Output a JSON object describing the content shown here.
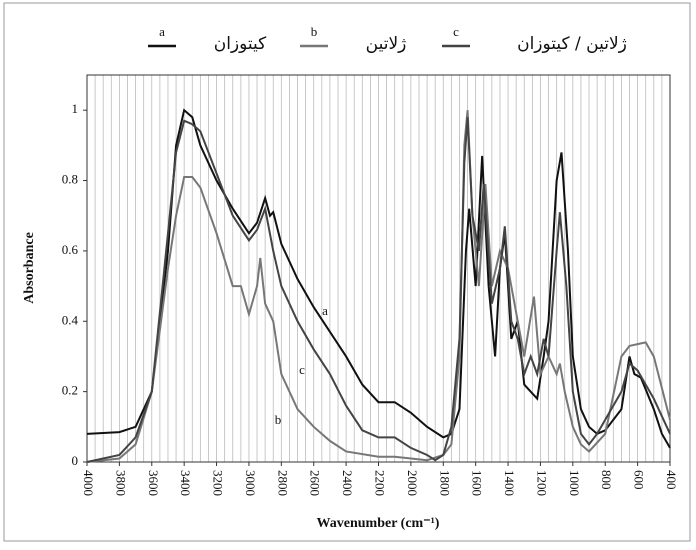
{
  "chart_data": {
    "type": "line",
    "xlabel": "Wavenumber (cm⁻¹)",
    "ylabel": "Absorbance",
    "xlim": [
      4000,
      400
    ],
    "ylim": [
      0,
      1.1
    ],
    "xticks": [
      4000,
      3800,
      3600,
      3400,
      3200,
      3000,
      2800,
      2600,
      2400,
      2200,
      2000,
      1800,
      1600,
      1400,
      1200,
      1000,
      800,
      600,
      400
    ],
    "xminor_ticks": [
      4000,
      3950,
      3900,
      3850,
      3800,
      3750,
      3700,
      3650,
      3600,
      3550,
      3500,
      3450,
      3400,
      3350,
      3300,
      3250,
      3200,
      3150,
      3100,
      3050,
      3000,
      2950,
      2900,
      2850,
      2800,
      2750,
      2700,
      2650,
      2600,
      2550,
      2500,
      2450,
      2400,
      2350,
      2300,
      2250,
      2200,
      2150,
      2100,
      2050,
      2000,
      1950,
      1900,
      1850,
      1800,
      1750,
      1700,
      1650,
      1600,
      1550,
      1500,
      1450,
      1400,
      1350,
      1300,
      1250,
      1200,
      1150,
      1100,
      1050,
      1000,
      950,
      900,
      850,
      800,
      750,
      700,
      650,
      600,
      550,
      500,
      450,
      400
    ],
    "yticks": [
      0,
      0.2,
      0.4,
      0.6,
      0.8,
      1
    ],
    "grid": "x",
    "series": [
      {
        "name": "کیتوزان",
        "label": "a",
        "color": "#111111",
        "x": [
          4000,
          3800,
          3700,
          3600,
          3500,
          3450,
          3400,
          3350,
          3300,
          3200,
          3100,
          3000,
          2950,
          2900,
          2870,
          2850,
          2800,
          2700,
          2600,
          2500,
          2400,
          2300,
          2200,
          2100,
          2000,
          1900,
          1800,
          1750,
          1700,
          1660,
          1640,
          1600,
          1560,
          1520,
          1480,
          1450,
          1420,
          1380,
          1340,
          1300,
          1260,
          1220,
          1180,
          1150,
          1100,
          1070,
          1030,
          1000,
          950,
          900,
          850,
          800,
          700,
          650,
          620,
          580,
          500,
          450,
          400
        ],
        "values": [
          0.08,
          0.085,
          0.1,
          0.2,
          0.6,
          0.9,
          1.0,
          0.98,
          0.9,
          0.8,
          0.72,
          0.65,
          0.68,
          0.75,
          0.7,
          0.71,
          0.62,
          0.52,
          0.44,
          0.37,
          0.3,
          0.22,
          0.17,
          0.17,
          0.14,
          0.1,
          0.07,
          0.08,
          0.15,
          0.6,
          0.72,
          0.5,
          0.87,
          0.5,
          0.3,
          0.55,
          0.65,
          0.35,
          0.4,
          0.22,
          0.2,
          0.18,
          0.3,
          0.4,
          0.8,
          0.88,
          0.6,
          0.3,
          0.15,
          0.1,
          0.08,
          0.09,
          0.15,
          0.3,
          0.25,
          0.24,
          0.15,
          0.08,
          0.04
        ]
      },
      {
        "name": "ژلاتین",
        "label": "b",
        "color": "#777777",
        "x": [
          4000,
          3800,
          3700,
          3600,
          3500,
          3450,
          3400,
          3350,
          3300,
          3200,
          3100,
          3050,
          3000,
          2950,
          2930,
          2900,
          2850,
          2800,
          2700,
          2600,
          2500,
          2400,
          2200,
          2100,
          2000,
          1900,
          1800,
          1750,
          1700,
          1670,
          1650,
          1620,
          1580,
          1540,
          1500,
          1450,
          1400,
          1340,
          1300,
          1240,
          1200,
          1150,
          1100,
          1080,
          1050,
          1000,
          950,
          900,
          800,
          700,
          650,
          550,
          500,
          400
        ],
        "values": [
          0,
          0.01,
          0.05,
          0.2,
          0.55,
          0.7,
          0.81,
          0.81,
          0.78,
          0.65,
          0.5,
          0.5,
          0.42,
          0.5,
          0.58,
          0.45,
          0.4,
          0.25,
          0.15,
          0.1,
          0.06,
          0.03,
          0.015,
          0.015,
          0.01,
          0.005,
          0.02,
          0.05,
          0.3,
          0.9,
          1.0,
          0.7,
          0.5,
          0.79,
          0.5,
          0.6,
          0.55,
          0.4,
          0.3,
          0.47,
          0.25,
          0.3,
          0.25,
          0.28,
          0.2,
          0.1,
          0.05,
          0.03,
          0.08,
          0.3,
          0.33,
          0.34,
          0.3,
          0.12
        ]
      },
      {
        "name": "ژلاتین / کیتوزان",
        "label": "c",
        "color": "#444444",
        "x": [
          4000,
          3800,
          3700,
          3600,
          3500,
          3450,
          3400,
          3350,
          3300,
          3200,
          3100,
          3000,
          2950,
          2900,
          2850,
          2800,
          2700,
          2600,
          2500,
          2400,
          2300,
          2200,
          2100,
          2000,
          1900,
          1850,
          1800,
          1750,
          1700,
          1670,
          1650,
          1620,
          1580,
          1550,
          1500,
          1450,
          1420,
          1380,
          1340,
          1300,
          1260,
          1220,
          1180,
          1150,
          1100,
          1080,
          1040,
          1000,
          950,
          900,
          850,
          800,
          700,
          650,
          600,
          550,
          500,
          400
        ],
        "values": [
          0,
          0.02,
          0.07,
          0.2,
          0.65,
          0.88,
          0.97,
          0.96,
          0.94,
          0.82,
          0.7,
          0.63,
          0.66,
          0.72,
          0.6,
          0.5,
          0.4,
          0.32,
          0.25,
          0.16,
          0.09,
          0.07,
          0.07,
          0.04,
          0.02,
          0.005,
          0.02,
          0.1,
          0.35,
          0.85,
          0.98,
          0.7,
          0.6,
          0.79,
          0.45,
          0.55,
          0.67,
          0.4,
          0.35,
          0.25,
          0.3,
          0.25,
          0.35,
          0.3,
          0.6,
          0.71,
          0.5,
          0.2,
          0.08,
          0.05,
          0.08,
          0.12,
          0.2,
          0.28,
          0.26,
          0.22,
          0.18,
          0.08
        ]
      }
    ]
  }
}
